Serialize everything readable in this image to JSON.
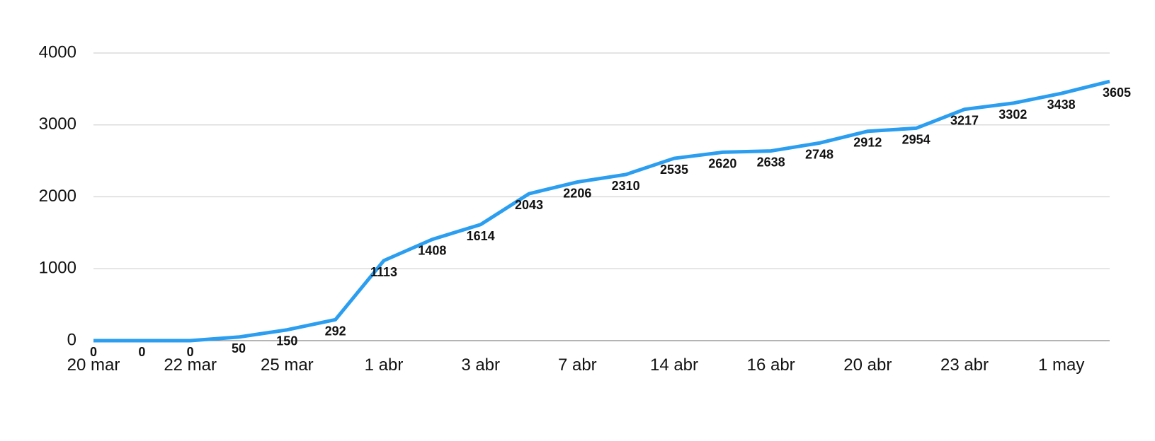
{
  "chart_data": {
    "type": "line",
    "categories": [
      "20 mar",
      null,
      "22 mar",
      null,
      "25 mar",
      null,
      "1 abr",
      null,
      "3 abr",
      null,
      "7 abr",
      null,
      "14 abr",
      null,
      "16 abr",
      null,
      "20 abr",
      null,
      "23 abr",
      null,
      "1 may",
      null
    ],
    "series": [
      {
        "color": "#2b9ef0",
        "values": [
          0,
          0,
          0,
          50,
          150,
          292,
          1113,
          1408,
          1614,
          2043,
          2206,
          2310,
          2535,
          2620,
          2638,
          2748,
          2912,
          2954,
          3217,
          3302,
          3438,
          3605
        ]
      }
    ],
    "ylim": [
      0,
      4000
    ],
    "yticks": [
      0,
      1000,
      2000,
      3000,
      4000
    ],
    "grid": true
  }
}
